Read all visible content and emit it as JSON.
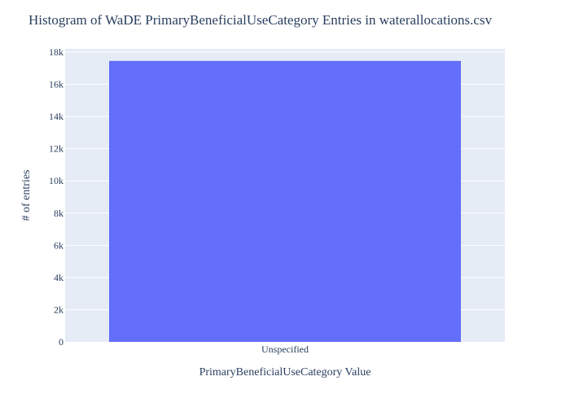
{
  "chart_data": {
    "type": "bar",
    "title": "Histogram of WaDE PrimaryBeneficialUseCategory Entries in waterallocations.csv",
    "xlabel": "PrimaryBeneficialUseCategory Value",
    "ylabel": "# of entries",
    "categories": [
      "Unspecified"
    ],
    "values": [
      17450
    ],
    "ylim": [
      0,
      18200
    ],
    "yticks": [
      0,
      2000,
      4000,
      6000,
      8000,
      10000,
      12000,
      14000,
      16000,
      18000
    ],
    "ytick_labels": [
      "0",
      "2k",
      "4k",
      "6k",
      "8k",
      "10k",
      "12k",
      "14k",
      "16k",
      "18k"
    ],
    "grid": true,
    "colors": {
      "bar": "#636efa",
      "plot_bg": "#e5ecf6",
      "grid": "#ffffff",
      "text": "#2a3f5f"
    }
  }
}
